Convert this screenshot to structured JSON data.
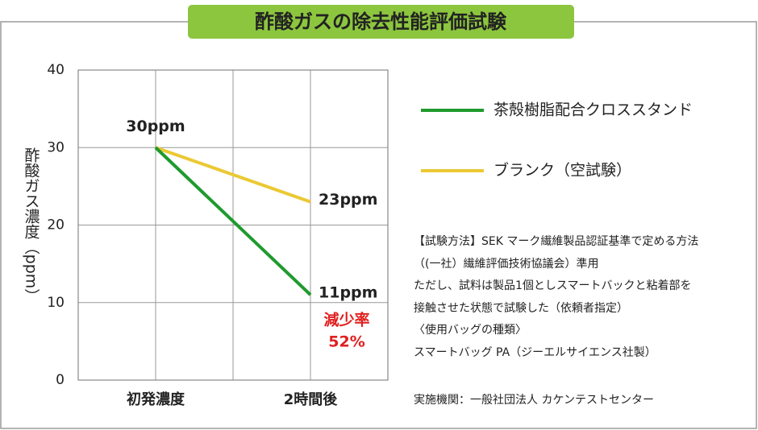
{
  "chart_data": {
    "type": "line",
    "title": "酢酸ガスの除去性能評価試験",
    "y_label": "酢酸ガス濃度（ppm）",
    "categories": [
      "初発濃度",
      "2時間後"
    ],
    "series": [
      {
        "name": "茶殻樹脂配合クロススタンド",
        "color": "#1f9a2e",
        "values": [
          30,
          11
        ],
        "value_labels": [
          "30ppm",
          "11ppm"
        ]
      },
      {
        "name": "ブランク（空試験）",
        "color": "#ebc934",
        "values": [
          30,
          23
        ],
        "value_labels": [
          null,
          "23ppm"
        ]
      }
    ],
    "ylim": [
      0,
      40
    ],
    "yticks": [
      0,
      10,
      20,
      30,
      40
    ],
    "grid": true,
    "annotations": [
      "減少率",
      "52%"
    ],
    "notes": [
      "【試験方法】SEK マーク繊維製品認証基準で定める方法",
      "（(一社）繊維評価技術協議会）準用",
      "ただし、試料は製品1個としスマートバックと粘着部を",
      "接触させた状態で試験した（依頼者指定）",
      "〈使用バッグの種類〉",
      "スマートバッグ PA（ジーエルサイエンス社製）",
      "実施機関：一般社団法人  カケンテストセンター"
    ]
  }
}
